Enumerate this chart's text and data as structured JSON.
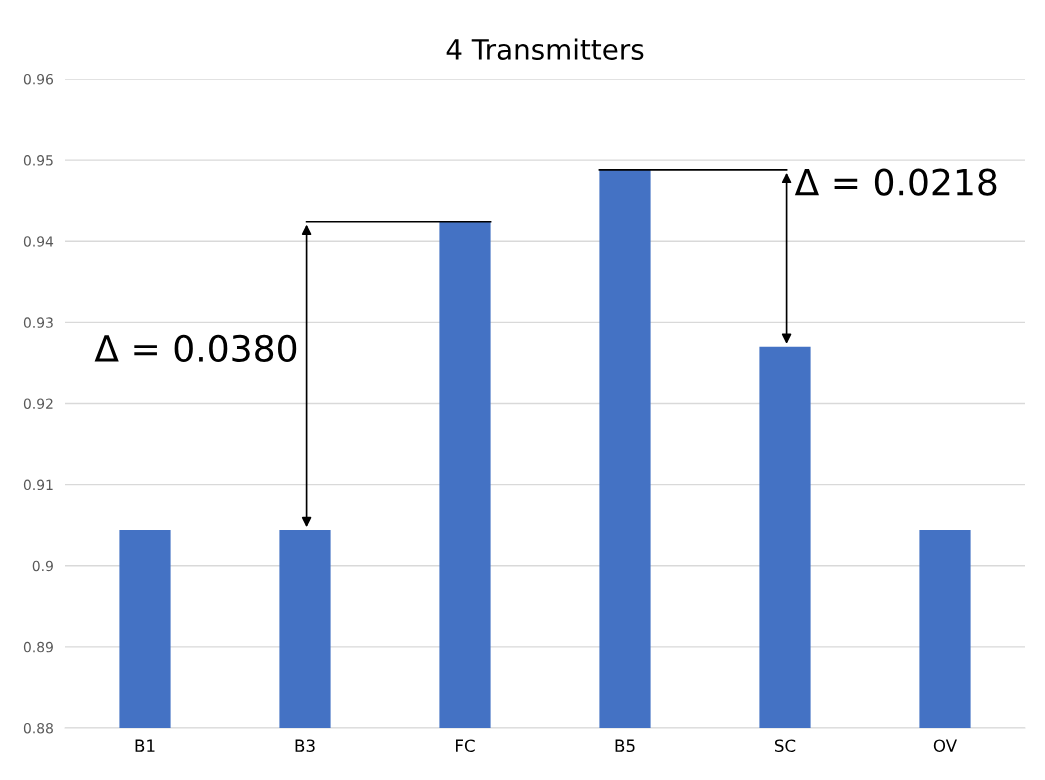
{
  "chart_data": {
    "type": "bar",
    "title": "4 Transmitters",
    "categories": [
      "B1",
      "B3",
      "FC",
      "B5",
      "SC",
      "OV"
    ],
    "values": [
      0.9044,
      0.9044,
      0.9424,
      0.9488,
      0.927,
      0.9044
    ],
    "color": "#4472c4",
    "ylim": [
      0.88,
      0.96
    ],
    "yticks": [
      0.88,
      0.89,
      0.9,
      0.91,
      0.92,
      0.93,
      0.94,
      0.95,
      0.96
    ],
    "grid": "y",
    "annotations": [
      "Δ = 0.0380",
      {
        "text": "Δ = 0.0218",
        "x": "SC",
        "y": 0.927
      }
    ]
  }
}
